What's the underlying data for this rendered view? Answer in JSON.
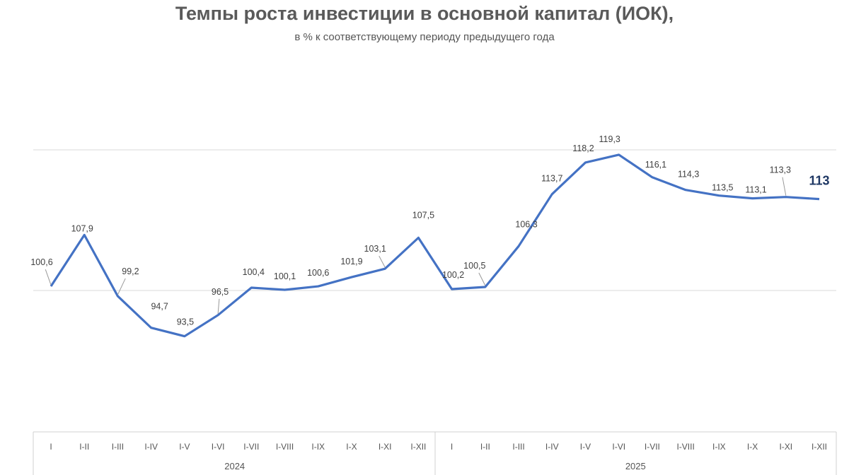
{
  "chart_data": {
    "type": "line",
    "title": "Темпы роста инвестиции в основной капитал (ИОК),",
    "subtitle": "в % к соответствующему периоду предыдущего года",
    "categories": [
      "I",
      "I-II",
      "I-III",
      "I-IV",
      "I-V",
      "I-VI",
      "I-VII",
      "I-VIII",
      "I-IX",
      "I-X",
      "I-XI",
      "I-XII",
      "I",
      "I-II",
      "I-III",
      "I-IV",
      "I-V",
      "I-VI",
      "I-VII",
      "I-VIII",
      "I-IX",
      "I-X",
      "I-XI",
      "I-XII"
    ],
    "groups": [
      {
        "label": "2024",
        "count": 12
      },
      {
        "label": "2025",
        "count": 12
      }
    ],
    "series": [
      {
        "values": [
          100.6,
          107.9,
          99.2,
          94.7,
          93.5,
          96.5,
          100.4,
          100.1,
          100.6,
          101.9,
          103.1,
          107.5,
          100.2,
          100.5,
          106.3,
          113.7,
          118.2,
          119.3,
          116.1,
          114.3,
          113.5,
          113.1,
          113.3,
          113
        ],
        "labels": [
          "100,6",
          "107,9",
          "99,2",
          "94,7",
          "93,5",
          "96,5",
          "100,4",
          "100,1",
          "100,6",
          "101,9",
          "103,1",
          "107,5",
          "100,2",
          "100,5",
          "106,3",
          "113,7",
          "118,2",
          "119,3",
          "116,1",
          "114,3",
          "113,5",
          "113,1",
          "113,3",
          "113"
        ],
        "color": "#4472c4"
      }
    ],
    "ylim": [
      80,
      121
    ],
    "gridlines": [
      100,
      120
    ],
    "grid": true,
    "legend": "none",
    "last_label_color": "#1f3864"
  }
}
